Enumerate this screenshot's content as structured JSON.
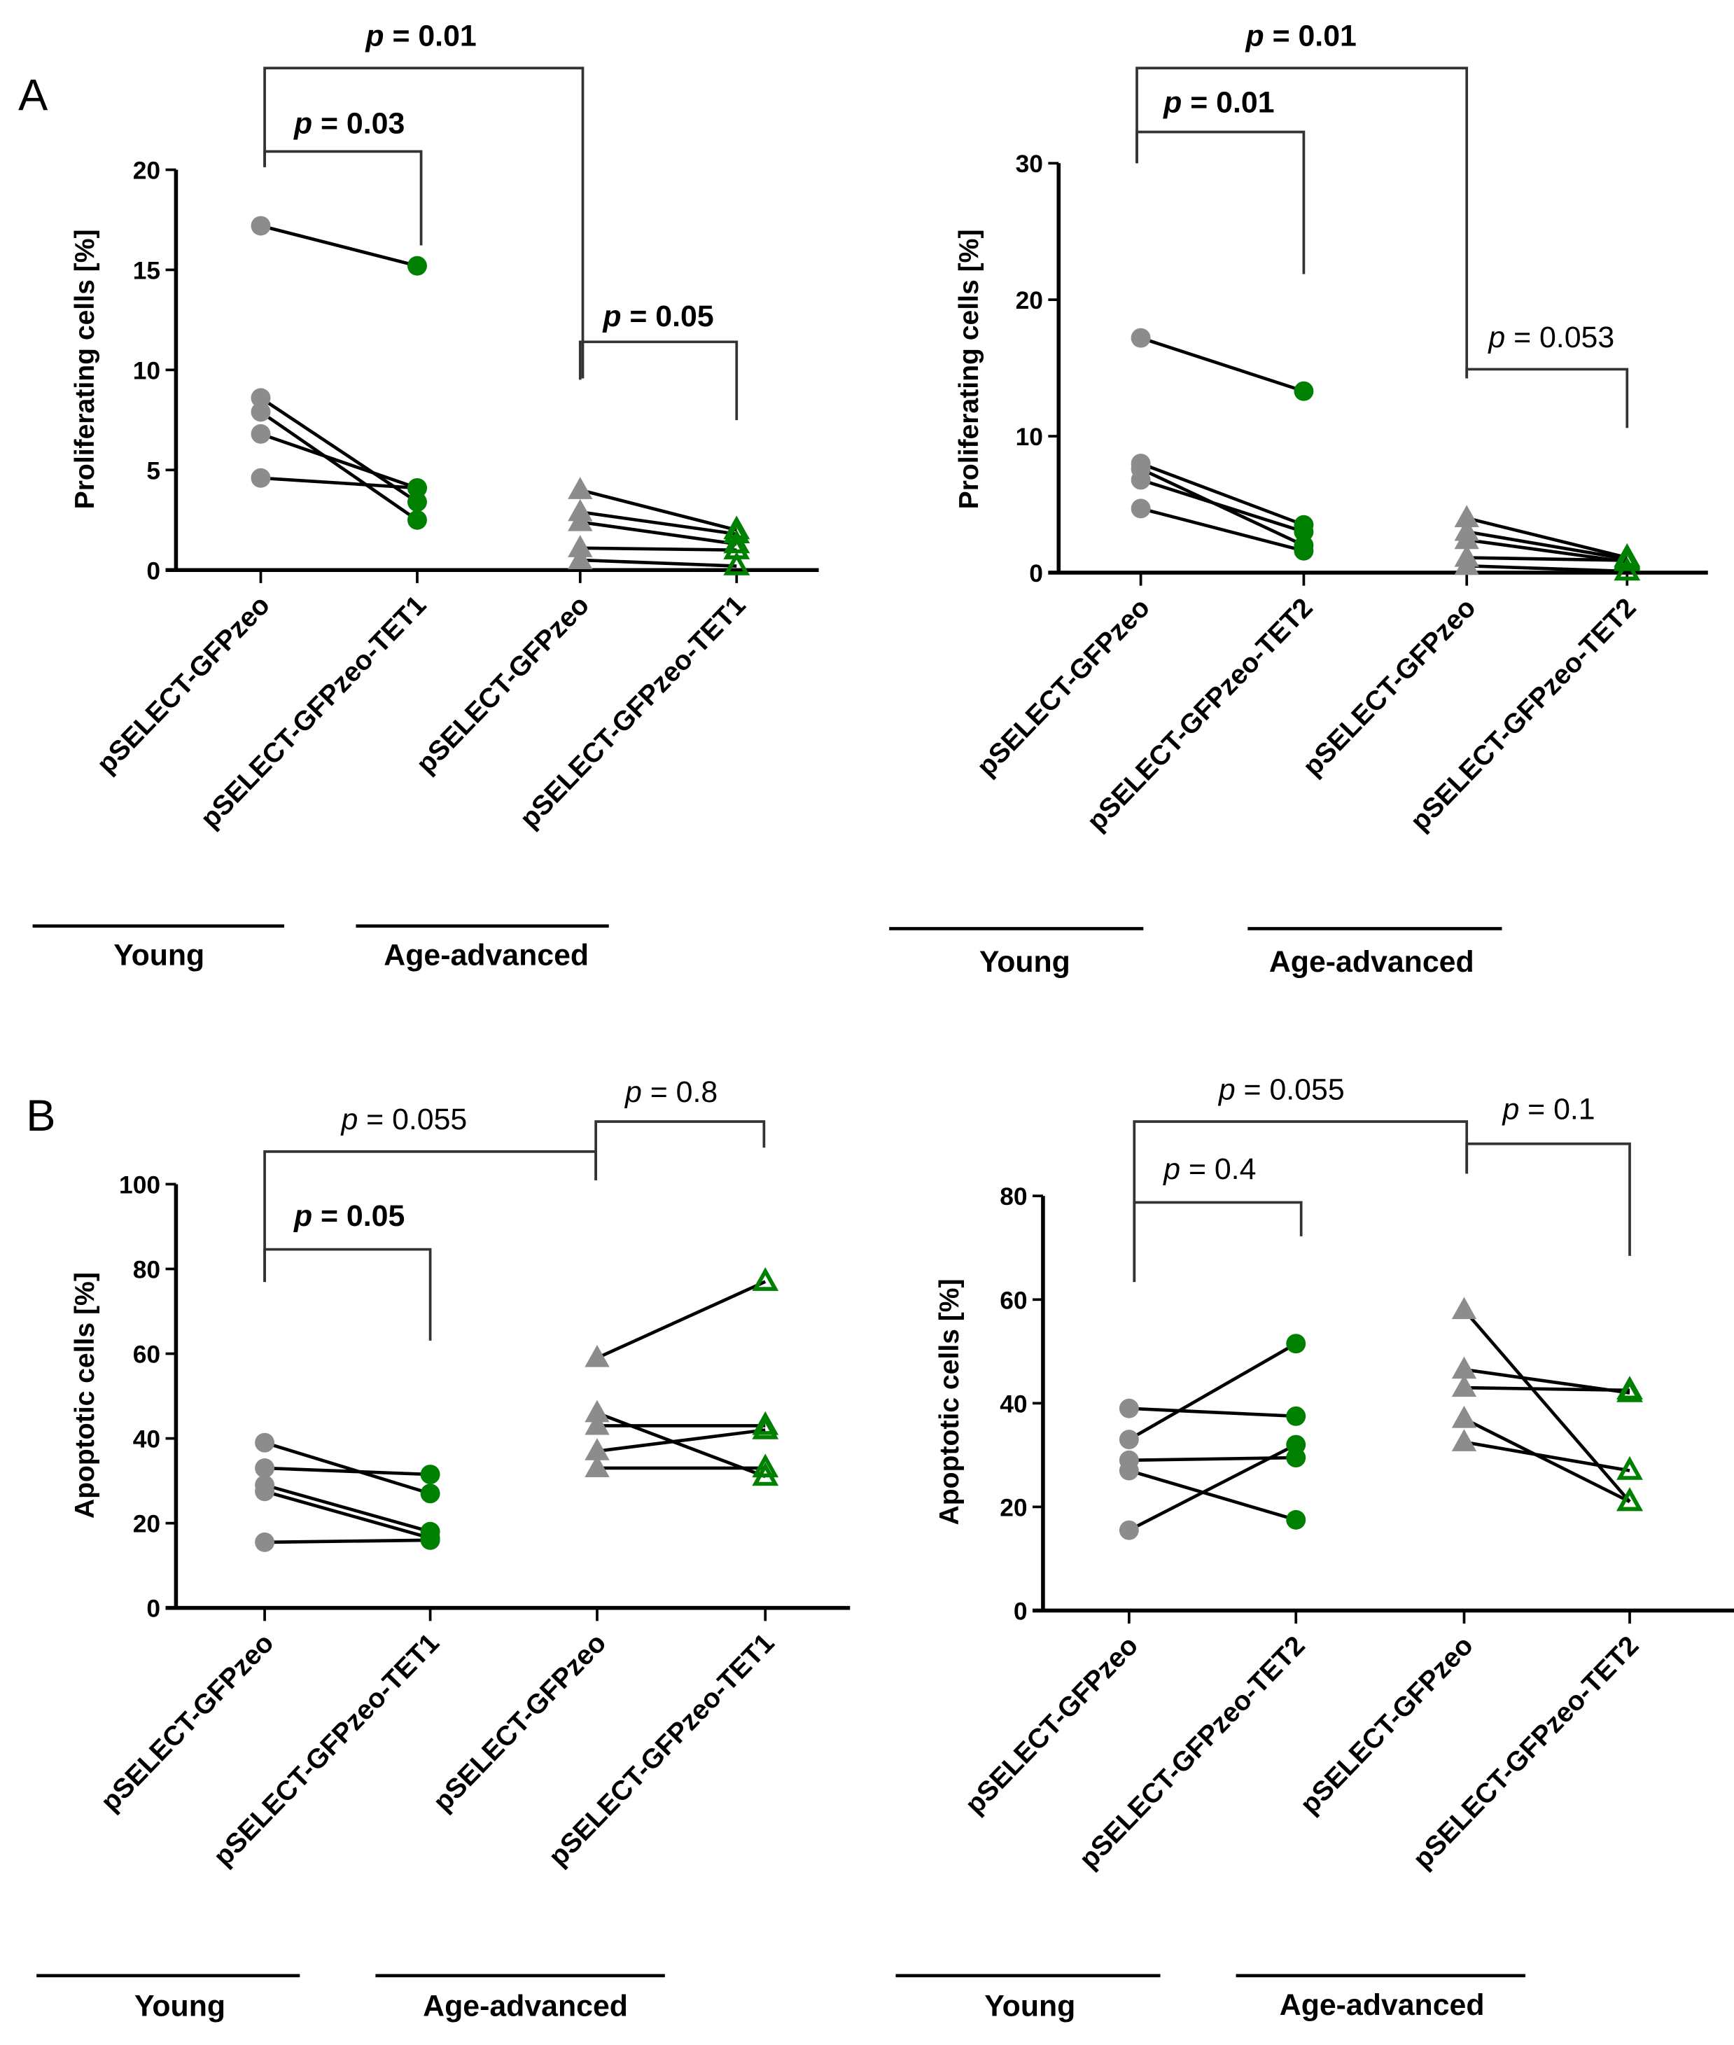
{
  "colors": {
    "control": "#8c8c8c",
    "tet": "#008000",
    "line": "#000000",
    "bracket": "#333333"
  },
  "chart_data": [
    {
      "panel": "A",
      "type": "line",
      "ylabel": "Proliferating cells [%]",
      "ylim": [
        0,
        20
      ],
      "yticks": [
        0,
        5,
        10,
        15,
        20
      ],
      "categories": [
        "pSELECT-GFPzeo",
        "pSELECT-GFPzeo-TET1",
        "pSELECT-GFPzeo",
        "pSELECT-GFPzeo-TET1"
      ],
      "groups": [
        "Young",
        "Age-advanced"
      ],
      "pairs": [
        {
          "group": "Young",
          "from": 0,
          "to": 1,
          "values": [
            [
              17.2,
              15.2
            ],
            [
              8.6,
              3.4
            ],
            [
              7.9,
              2.5
            ],
            [
              6.8,
              4.1
            ],
            [
              4.6,
              4.1
            ]
          ]
        },
        {
          "group": "Age-advanced",
          "from": 2,
          "to": 3,
          "values": [
            [
              4.0,
              2.0
            ],
            [
              2.9,
              1.8
            ],
            [
              2.4,
              1.3
            ],
            [
              1.1,
              1.0
            ],
            [
              0.5,
              0.2
            ]
          ]
        }
      ],
      "annotations": [
        {
          "text": "p = 0.01",
          "bold": true,
          "between": [
            0,
            2
          ]
        },
        {
          "text": "p = 0.03",
          "bold": true,
          "between": [
            0,
            1
          ]
        },
        {
          "text": "p = 0.05",
          "bold": true,
          "between": [
            2,
            3
          ]
        }
      ]
    },
    {
      "panel": "",
      "type": "line",
      "ylabel": "Proliferating cells [%]",
      "ylim": [
        0,
        30
      ],
      "yticks": [
        0,
        10,
        20,
        30
      ],
      "categories": [
        "pSELECT-GFPzeo",
        "pSELECT-GFPzeo-TET2",
        "pSELECT-GFPzeo",
        "pSELECT-GFPzeo-TET2"
      ],
      "groups": [
        "Young",
        "Age-advanced"
      ],
      "pairs": [
        {
          "group": "Young",
          "from": 0,
          "to": 1,
          "values": [
            [
              17.2,
              13.3
            ],
            [
              8.0,
              3.5
            ],
            [
              7.6,
              2.0
            ],
            [
              6.8,
              3.0
            ],
            [
              4.7,
              1.6
            ]
          ]
        },
        {
          "group": "Age-advanced",
          "from": 2,
          "to": 3,
          "values": [
            [
              4.0,
              1.1
            ],
            [
              3.0,
              1.0
            ],
            [
              2.4,
              0.8
            ],
            [
              1.1,
              0.9
            ],
            [
              0.5,
              0.1
            ]
          ]
        }
      ],
      "annotations": [
        {
          "text": "p = 0.01",
          "bold": true,
          "between": [
            0,
            2
          ]
        },
        {
          "text": "p = 0.01",
          "bold": true,
          "between": [
            0,
            1
          ]
        },
        {
          "text": "p = 0.053",
          "bold": false,
          "between": [
            2,
            3
          ]
        }
      ]
    },
    {
      "panel": "B",
      "type": "line",
      "ylabel": "Apoptotic cells [%]",
      "ylim": [
        0,
        100
      ],
      "yticks": [
        0,
        20,
        40,
        60,
        80,
        100
      ],
      "categories": [
        "pSELECT-GFPzeo",
        "pSELECT-GFPzeo-TET1",
        "pSELECT-GFPzeo",
        "pSELECT-GFPzeo-TET1"
      ],
      "groups": [
        "Young",
        "Age-advanced"
      ],
      "pairs": [
        {
          "group": "Young",
          "from": 0,
          "to": 1,
          "values": [
            [
              39,
              27
            ],
            [
              33,
              31.5
            ],
            [
              29,
              18
            ],
            [
              27.5,
              16.5
            ],
            [
              15.5,
              16
            ]
          ]
        },
        {
          "group": "Age-advanced",
          "from": 2,
          "to": 3,
          "values": [
            [
              59,
              77
            ],
            [
              46,
              31
            ],
            [
              43,
              43
            ],
            [
              37,
              42
            ],
            [
              33,
              33
            ]
          ]
        }
      ],
      "annotations": [
        {
          "text": "p = 0.055",
          "bold": false,
          "between": [
            0,
            2
          ]
        },
        {
          "text": "p = 0.8",
          "bold": false,
          "between": [
            2,
            3
          ]
        },
        {
          "text": "p = 0.05",
          "bold": true,
          "between": [
            0,
            1
          ]
        }
      ]
    },
    {
      "panel": "",
      "type": "line",
      "ylabel": "Apoptotic cells [%]",
      "ylim": [
        0,
        80
      ],
      "yticks": [
        0,
        20,
        40,
        60,
        80
      ],
      "categories": [
        "pSELECT-GFPzeo",
        "pSELECT-GFPzeo-TET2",
        "pSELECT-GFPzeo",
        "pSELECT-GFPzeo-TET2"
      ],
      "groups": [
        "Young",
        "Age-advanced"
      ],
      "pairs": [
        {
          "group": "Young",
          "from": 0,
          "to": 1,
          "values": [
            [
              39,
              37.5
            ],
            [
              33,
              51.5
            ],
            [
              29,
              29.5
            ],
            [
              27,
              17.5
            ],
            [
              15.5,
              32
            ]
          ]
        },
        {
          "group": "Age-advanced",
          "from": 2,
          "to": 3,
          "values": [
            [
              58,
              21
            ],
            [
              46.5,
              42
            ],
            [
              43,
              42.5
            ],
            [
              37,
              21
            ],
            [
              32.5,
              27
            ]
          ]
        }
      ],
      "annotations": [
        {
          "text": "p = 0.055",
          "bold": false,
          "between": [
            0,
            2
          ]
        },
        {
          "text": "p = 0.1",
          "bold": false,
          "between": [
            2,
            3
          ]
        },
        {
          "text": "p = 0.4",
          "bold": false,
          "between": [
            0,
            1
          ]
        }
      ]
    }
  ]
}
